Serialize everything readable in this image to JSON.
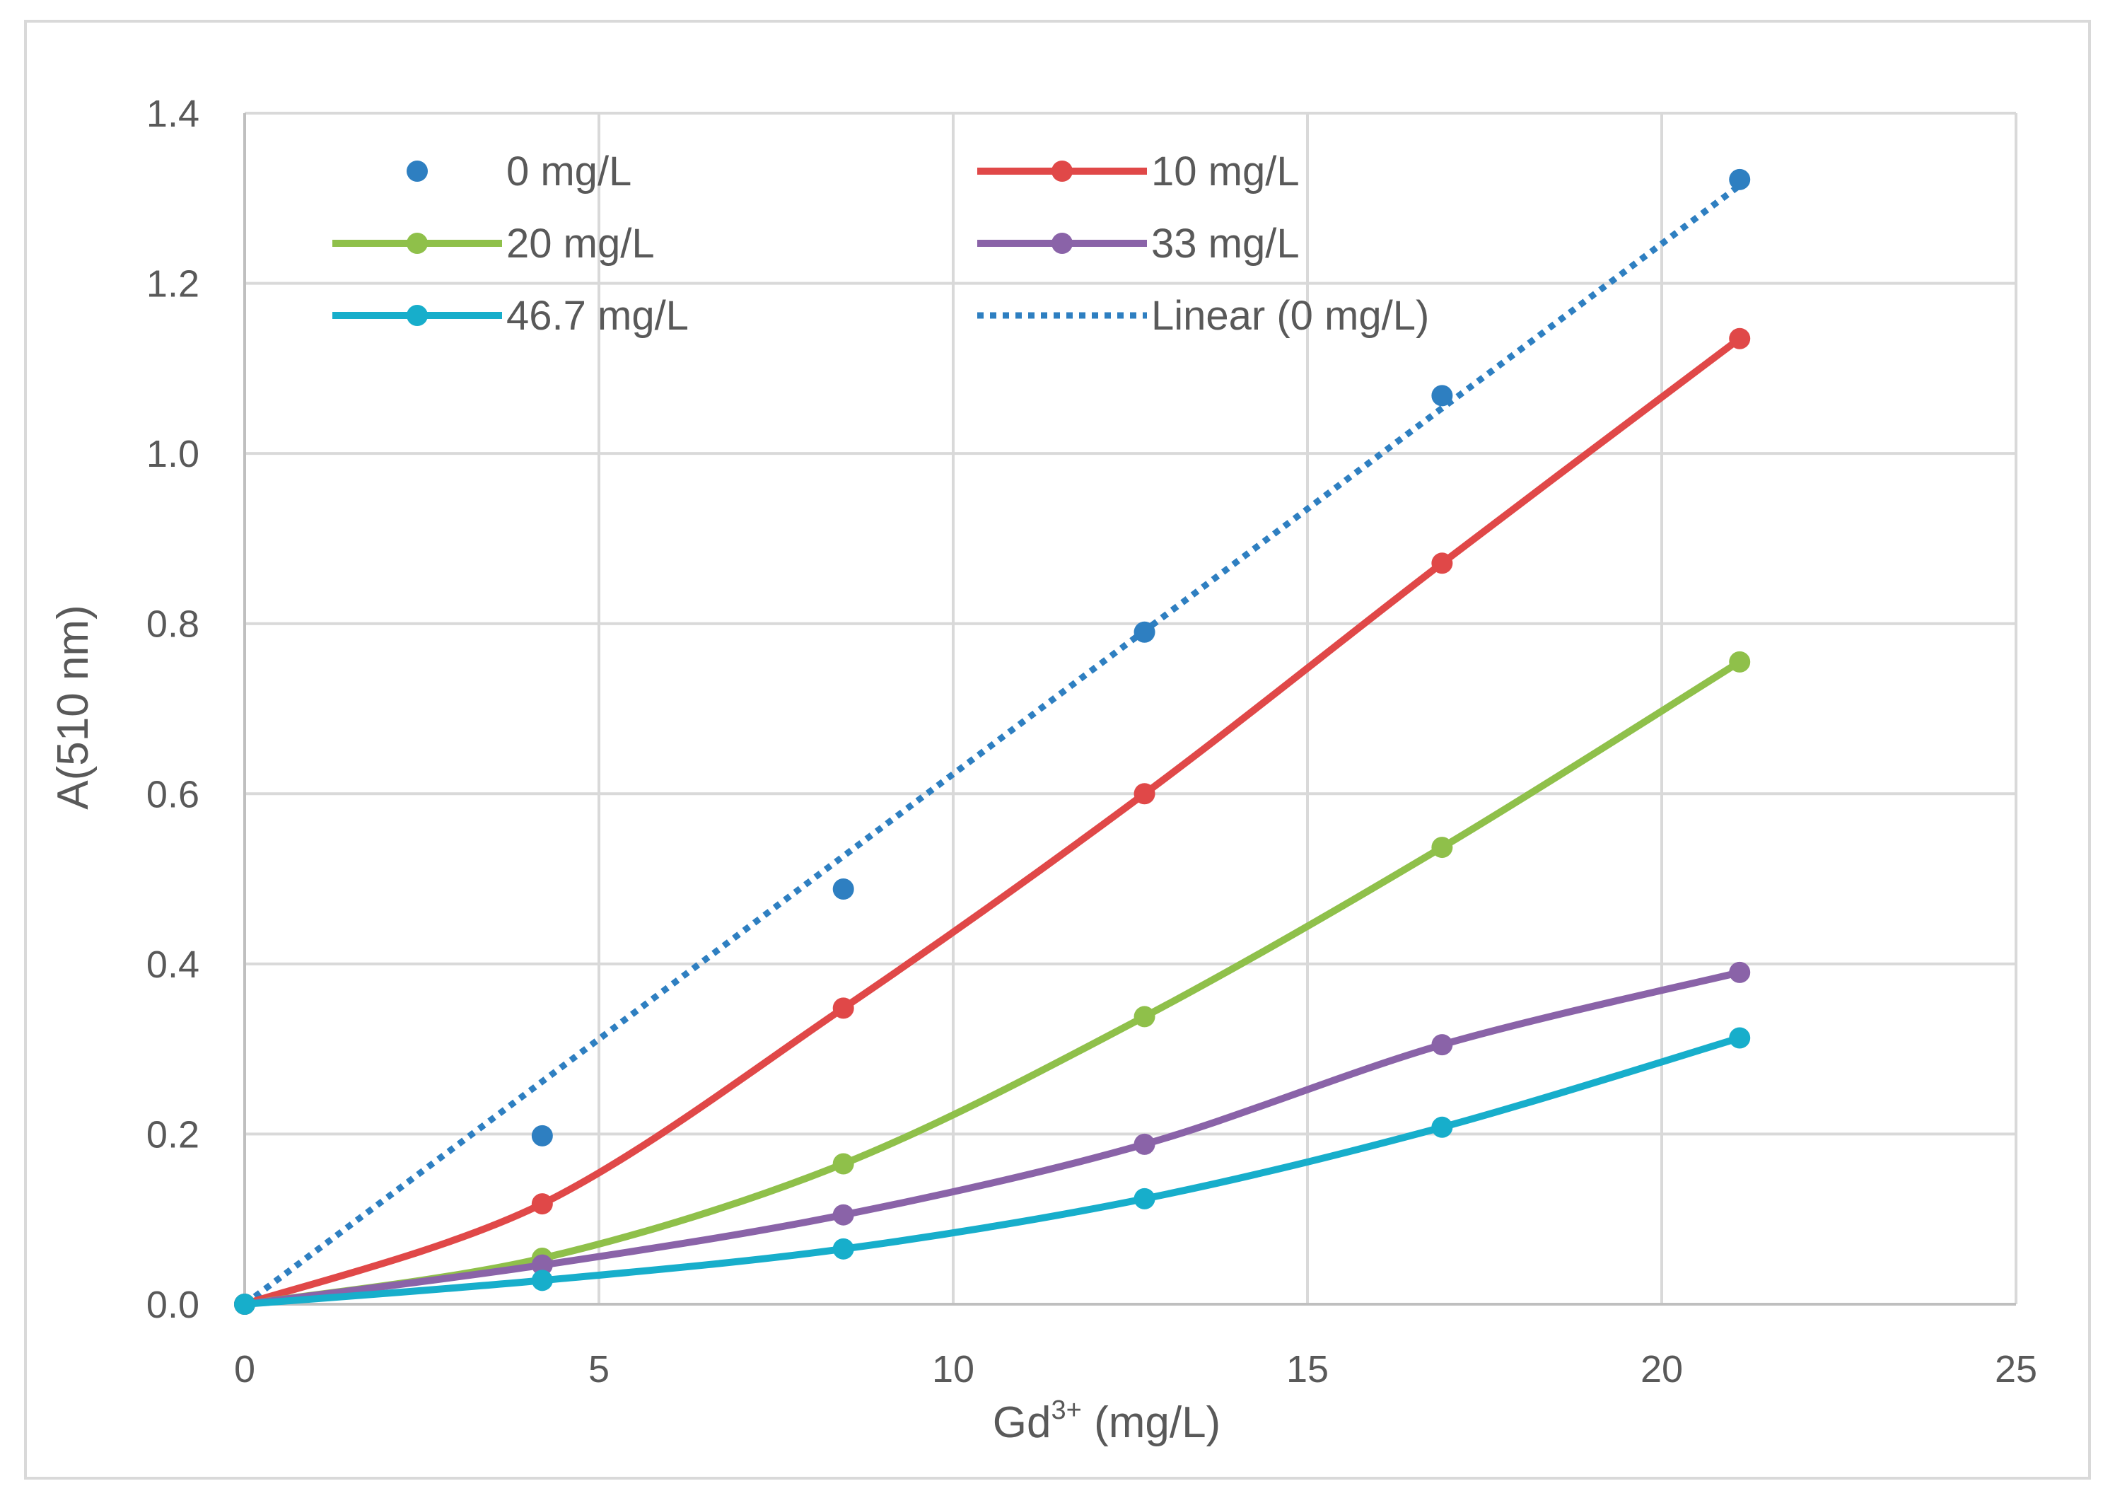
{
  "chart_data": {
    "type": "line",
    "xlabel_main": "Gd",
    "xlabel_sup": "3+",
    "xlabel_tail": " (mg/L)",
    "ylabel": "A(510 nm)",
    "xlim": [
      0,
      25
    ],
    "ylim": [
      0,
      1.4
    ],
    "xticks": [
      0,
      5,
      10,
      15,
      20,
      25
    ],
    "yticks": [
      0.0,
      0.2,
      0.4,
      0.6,
      0.8,
      1.0,
      1.2,
      1.4
    ],
    "xtick_labels": [
      "0",
      "5",
      "10",
      "15",
      "20",
      "25"
    ],
    "ytick_labels": [
      "0.0",
      "0.2",
      "0.4",
      "0.6",
      "0.8",
      "1.0",
      "1.2",
      "1.4"
    ],
    "grid": true,
    "legend_position": "top",
    "x": [
      0,
      4.2,
      8.45,
      12.7,
      16.9,
      21.1
    ],
    "series": [
      {
        "name": "0 mg/L",
        "style": "markers",
        "color": "#2e7fc1",
        "values": [
          0,
          0.198,
          0.488,
          0.79,
          1.068,
          1.322
        ]
      },
      {
        "name": "10 mg/L",
        "style": "line-markers",
        "color": "#e04848",
        "values": [
          0,
          0.118,
          0.348,
          0.6,
          0.871,
          1.135
        ]
      },
      {
        "name": "20 mg/L",
        "style": "line-markers",
        "color": "#8fc04a",
        "values": [
          0,
          0.054,
          0.165,
          0.338,
          0.537,
          0.755
        ]
      },
      {
        "name": "33 mg/L",
        "style": "line-markers",
        "color": "#8a63a8",
        "values": [
          0,
          0.046,
          0.105,
          0.188,
          0.305,
          0.39
        ]
      },
      {
        "name": "46.7 mg/L",
        "style": "line-markers",
        "color": "#17aecb",
        "values": [
          0,
          0.028,
          0.065,
          0.124,
          0.208,
          0.313
        ]
      }
    ],
    "trendline": {
      "name": "Linear (0 mg/L)",
      "color": "#2e7fc1",
      "x": [
        0,
        21.1
      ],
      "values": [
        0,
        1.315
      ]
    },
    "legend_order": [
      [
        "0 mg/L",
        "10 mg/L"
      ],
      [
        "20 mg/L",
        "33 mg/L"
      ],
      [
        "46.7 mg/L",
        "Linear (0 mg/L)"
      ]
    ]
  }
}
